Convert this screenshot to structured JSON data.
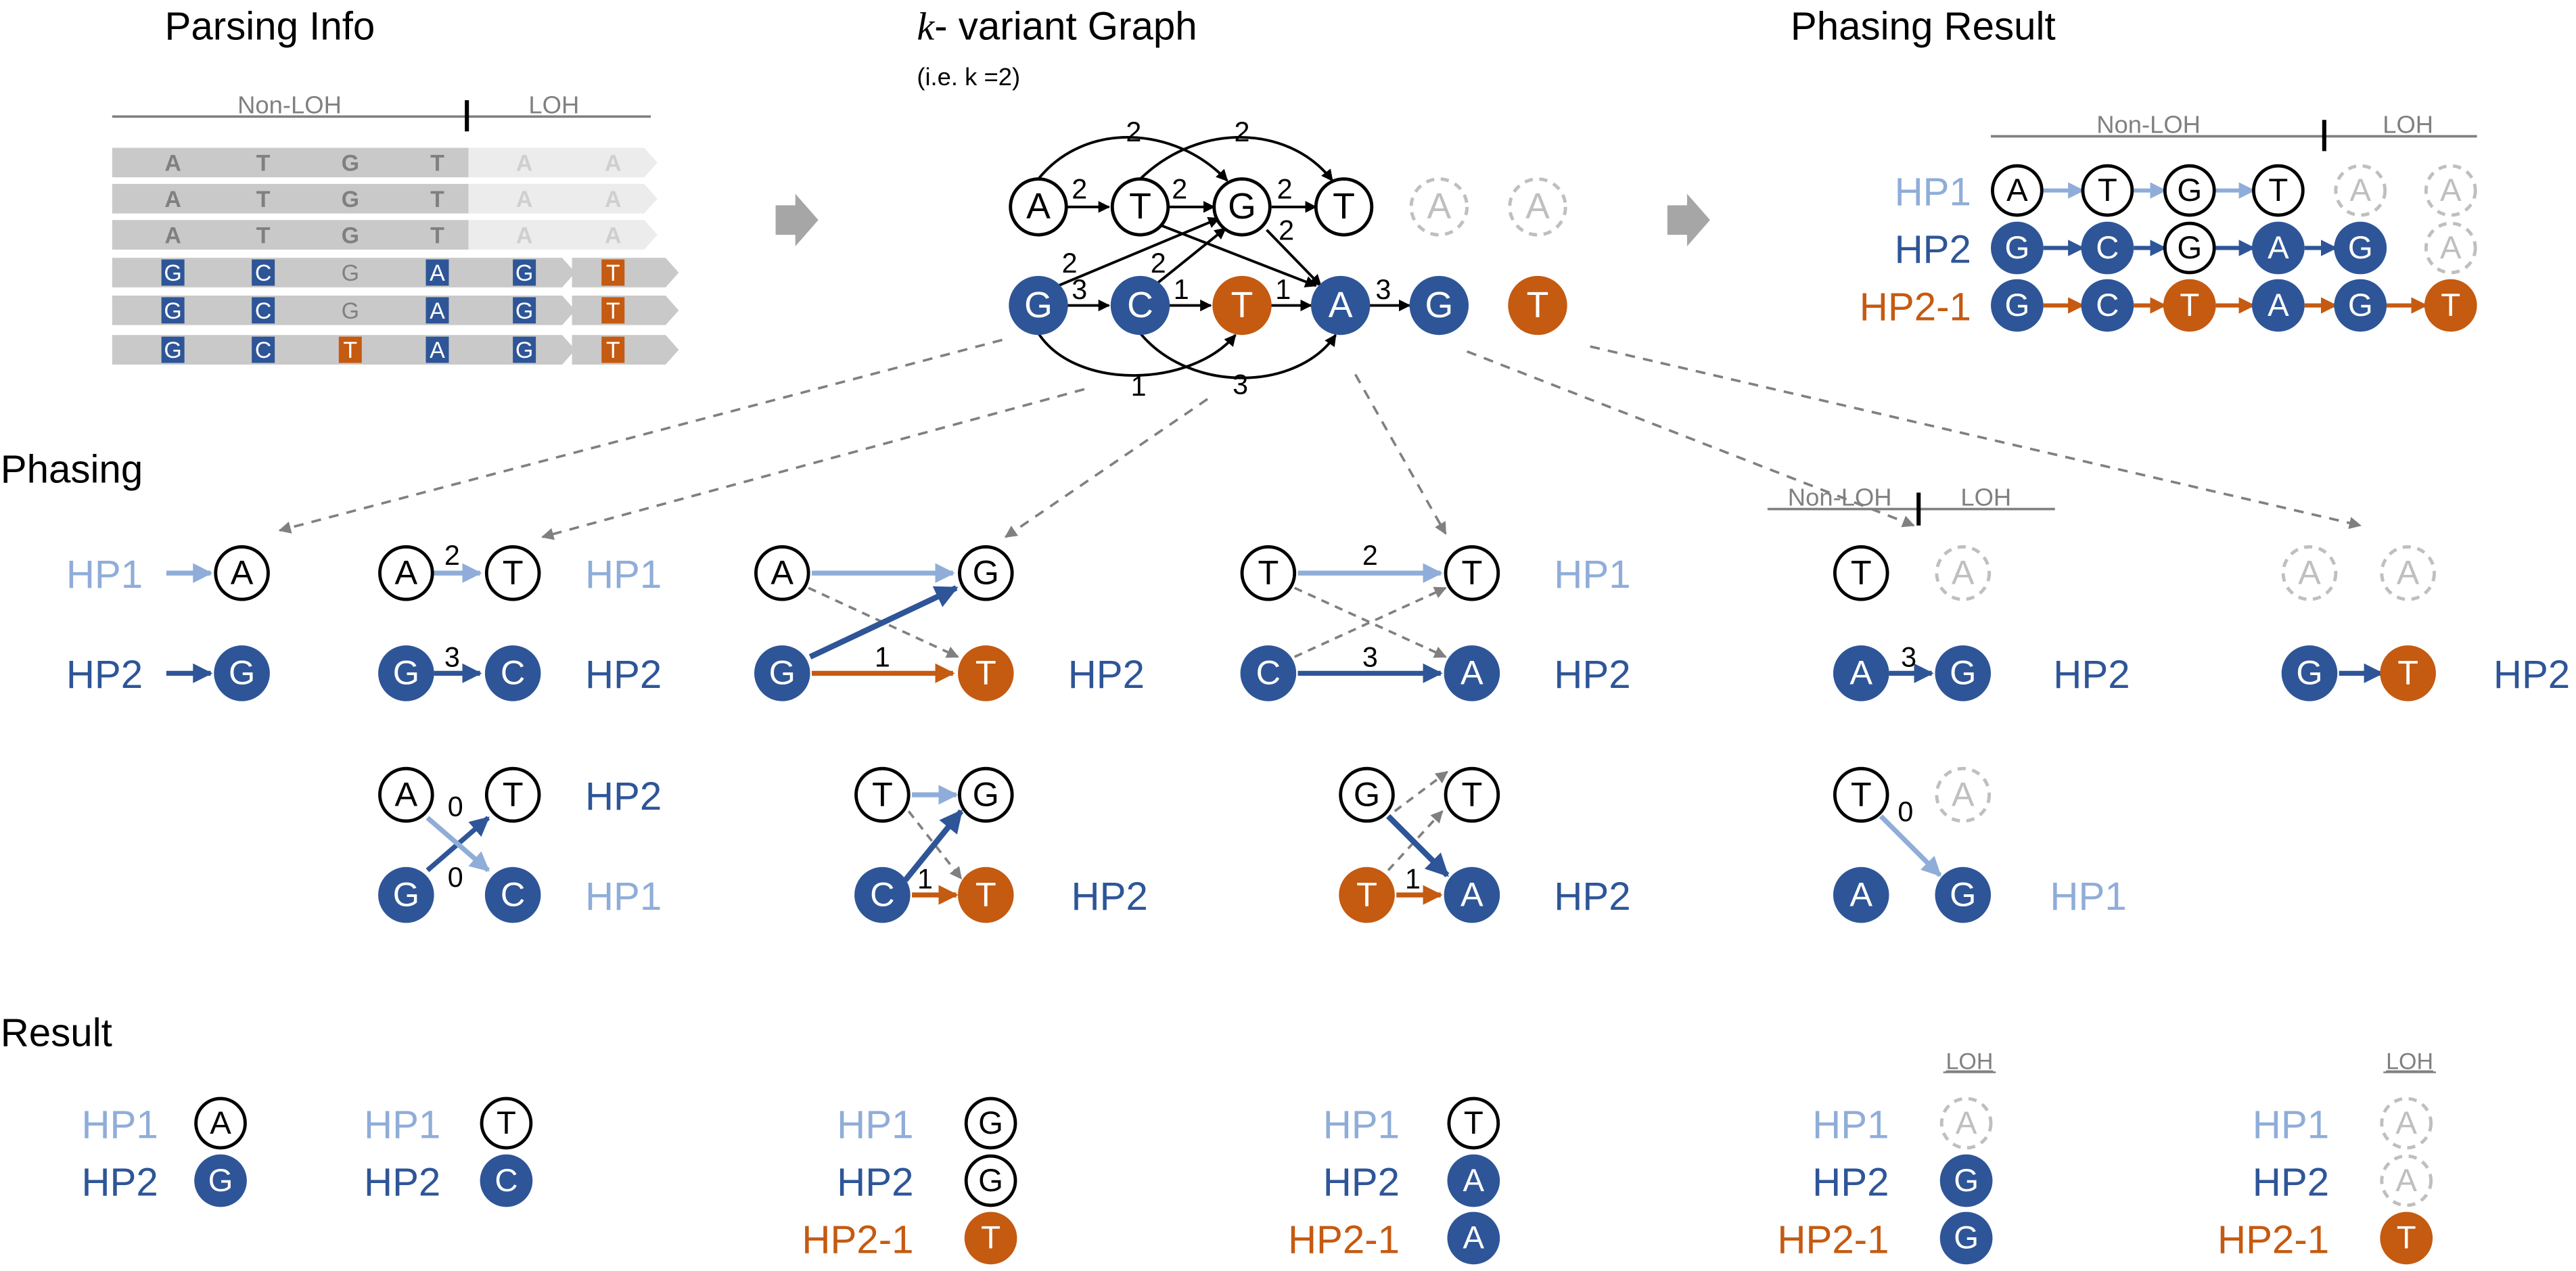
{
  "headings": {
    "parsing_info": "Parsing Info",
    "graph": "- variant Graph",
    "graph_k": "k",
    "graph_example": "(i.e. k =2)",
    "phasing_result": "Phasing Result",
    "phasing": "Phasing",
    "result": "Result"
  },
  "regions": {
    "non_loh": "Non-LOH",
    "loh": "LOH"
  },
  "haplotypes": {
    "hp1": "HP1",
    "hp2": "HP2",
    "hp2_1": "HP2-1"
  },
  "colors": {
    "hp1": "#8fadd8",
    "hp2": "#2e5597",
    "hp2_1": "#c55a11",
    "read_fill": "#c9c9c9",
    "read_fill_light": "#ececec",
    "read_text": "#808080",
    "read_text_light": "#cfcfcf",
    "dashed_node": "#bfbfbf",
    "guide_arrow": "#808080"
  },
  "parsing_reads": [
    [
      "A",
      "T",
      "G",
      "T",
      "A",
      "A"
    ],
    [
      "A",
      "T",
      "G",
      "T",
      "A",
      "A"
    ],
    [
      "A",
      "T",
      "G",
      "T",
      "A",
      "A"
    ],
    [
      "G",
      "C",
      "G",
      "A",
      "G",
      "T"
    ],
    [
      "G",
      "C",
      "G",
      "A",
      "G",
      "T"
    ],
    [
      "G",
      "C",
      "T",
      "A",
      "G",
      "T"
    ]
  ],
  "graph": {
    "top_row": [
      "A",
      "T",
      "G",
      "T",
      "A",
      "A"
    ],
    "bottom_row": [
      "G",
      "C",
      "T",
      "A",
      "G",
      "T"
    ],
    "edge_weights": {
      "top_arc_1": "2",
      "top_arc_2": "2",
      "a_t": "2",
      "t_g": "2",
      "g_t": "2",
      "g_down": "2",
      "g_diag_1": "2",
      "c_diag": "2",
      "g_c": "3",
      "c_t": "1",
      "t_a": "1",
      "a_g": "3",
      "bottom_arc_1": "1",
      "bottom_arc_2": "3"
    }
  },
  "phasing_result": {
    "hp1": [
      "A",
      "T",
      "G",
      "T",
      "A",
      "A"
    ],
    "hp2": [
      "G",
      "C",
      "G",
      "A",
      "G",
      "A"
    ],
    "hp2_1": [
      "G",
      "C",
      "T",
      "A",
      "G",
      "T"
    ]
  },
  "phasing_steps": [
    {
      "hp1_label": "HP1",
      "hp2_label": "HP2",
      "top": "A",
      "bottom": "G"
    },
    {
      "pair1": {
        "top": [
          "A",
          "T"
        ],
        "bottom": [
          "G",
          "C"
        ],
        "weight_top": "2",
        "weight_bottom": "3",
        "top_label": "HP1",
        "bottom_label": "HP2"
      },
      "pair2": {
        "top": [
          "A",
          "T"
        ],
        "bottom": [
          "G",
          "C"
        ],
        "weight_top": "0",
        "weight_bottom": "0",
        "top_label": "HP2",
        "bottom_label": "HP1"
      }
    },
    {
      "pair1": {
        "top": [
          "A",
          "G"
        ],
        "bottom": [
          "G",
          "T"
        ],
        "weight": "1",
        "label": "HP2"
      },
      "pair2": {
        "top": [
          "T",
          "G"
        ],
        "bottom": [
          "C",
          "T"
        ],
        "weight": "1",
        "label": "HP2"
      }
    },
    {
      "pair1": {
        "top": [
          "T",
          "T"
        ],
        "bottom": [
          "C",
          "A"
        ],
        "weight_top": "2",
        "weight_bottom": "3",
        "top_label": "HP1",
        "bottom_label": "HP2"
      },
      "pair2": {
        "top": [
          "G",
          "T"
        ],
        "bottom": [
          "T",
          "A"
        ],
        "weight": "1",
        "label": "HP2"
      }
    },
    {
      "pair1": {
        "top": [
          "T",
          "A"
        ],
        "bottom": [
          "A",
          "G"
        ],
        "weight": "3",
        "label": "HP2"
      },
      "pair2": {
        "top": [
          "T",
          "A"
        ],
        "bottom": [
          "A",
          "G"
        ],
        "weight": "0",
        "label": "HP1"
      }
    },
    {
      "top": [
        "A",
        "A"
      ],
      "bottom": [
        "G",
        "T"
      ],
      "label": "HP2"
    }
  ],
  "result_columns": [
    {
      "hp1": "A",
      "hp2": "G"
    },
    {
      "hp1": "T",
      "hp2": "C"
    },
    {
      "hp1": "G",
      "hp2": "G",
      "hp2_1": "T"
    },
    {
      "hp1": "T",
      "hp2": "A",
      "hp2_1": "A"
    },
    {
      "hp1": "A",
      "hp2": "G",
      "hp2_1": "G",
      "loh": "LOH"
    },
    {
      "hp1": "A",
      "hp2": "A",
      "hp2_1": "T",
      "loh": "LOH"
    }
  ]
}
